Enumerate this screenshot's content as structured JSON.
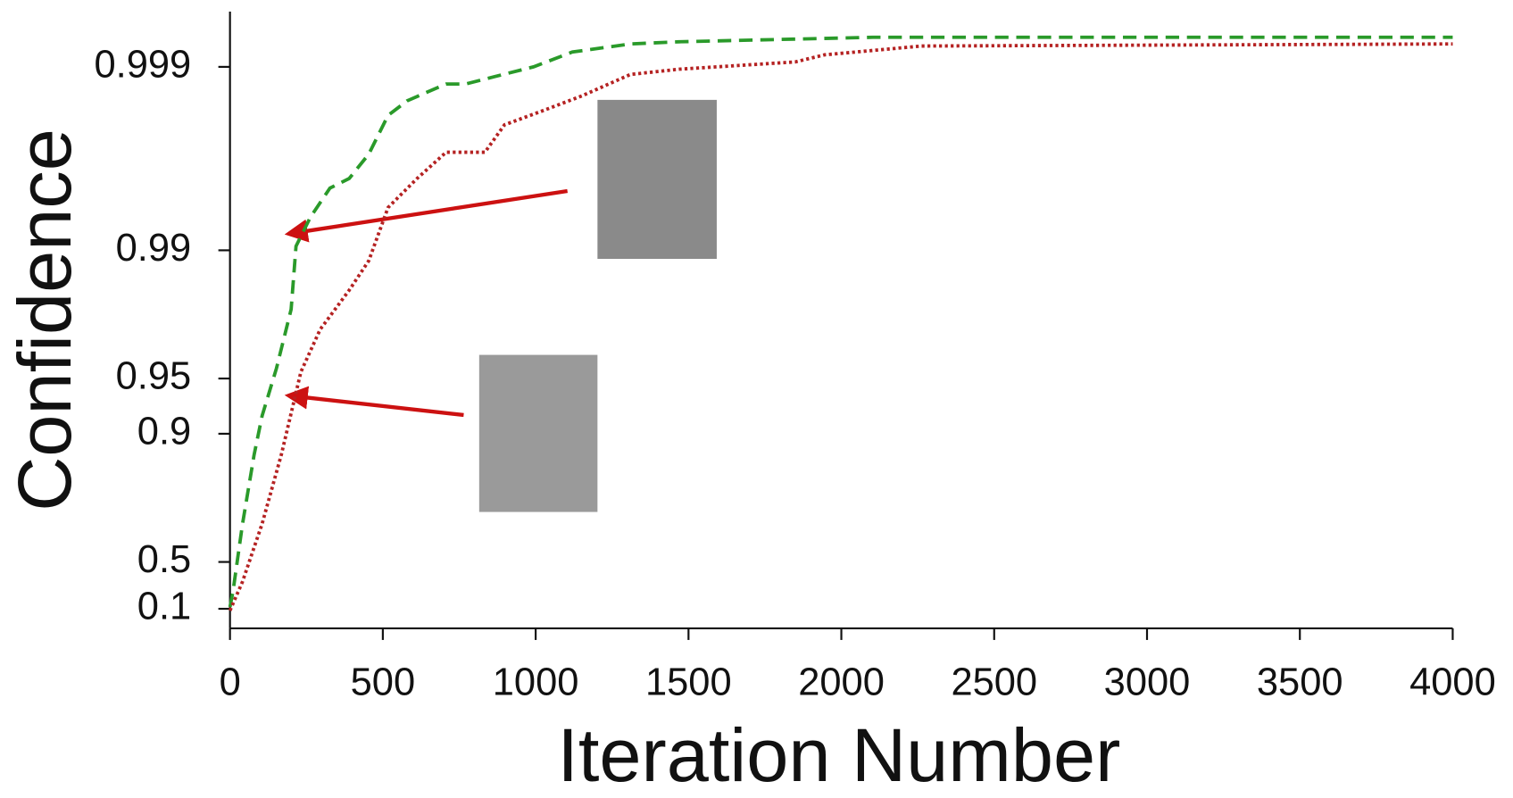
{
  "chart_data": {
    "type": "line",
    "x_label": "Iteration Number",
    "y_label": "Confidence",
    "yscale": "neg_log_complement",
    "xlim": [
      0,
      4000
    ],
    "xticks": [
      0,
      500,
      1000,
      1500,
      2000,
      2500,
      3000,
      3500,
      4000
    ],
    "ylim": [
      -0.15,
      0.9995
    ],
    "yticks": [
      0.1,
      0.5,
      0.9,
      0.95,
      0.99,
      0.999
    ],
    "series": [
      {
        "color": "#2a9a2a",
        "dash": "dashed",
        "x": [
          0,
          10,
          41,
          79,
          105,
          152,
          200,
          216,
          263,
          327,
          390,
          454,
          517,
          580,
          707,
          771,
          866,
          993,
          1120,
          1310,
          1469,
          2103,
          4000
        ],
        "values": [
          0.12,
          0.28,
          0.69,
          0.87,
          0.92,
          0.956,
          0.979,
          0.9905,
          0.9934,
          0.99542,
          0.99594,
          0.99701,
          0.99816,
          0.99847,
          0.99876,
          0.99876,
          0.99887,
          0.999,
          0.99917,
          0.99925,
          0.99927,
          0.99931,
          0.99931
        ]
      },
      {
        "color": "#b52222",
        "dash": "dotted",
        "x": [
          0,
          41,
          105,
          168,
          232,
          295,
          390,
          454,
          517,
          612,
          707,
          834,
          898,
          1025,
          1151,
          1310,
          1469,
          1849,
          1945,
          2262,
          4000
        ],
        "values": [
          0.08,
          0.36,
          0.69,
          0.87,
          0.954,
          0.973,
          0.9835,
          0.9886,
          0.99415,
          0.99594,
          0.99708,
          0.99708,
          0.99793,
          0.99827,
          0.99856,
          0.9989,
          0.99897,
          0.99906,
          0.99914,
          0.99923,
          0.99925
        ]
      }
    ]
  }
}
